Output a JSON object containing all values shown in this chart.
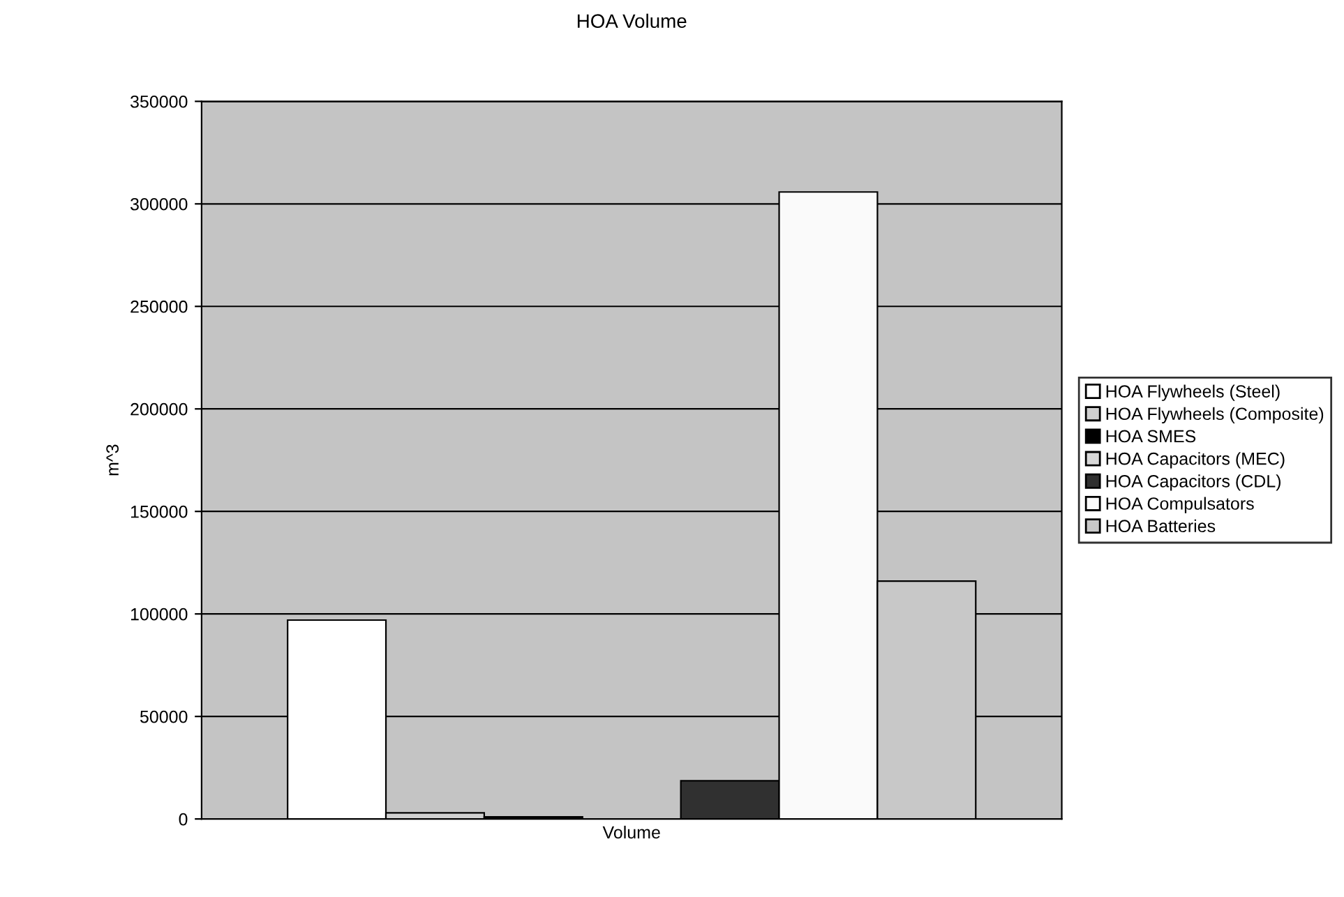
{
  "chart_data": {
    "type": "bar",
    "title": "HOA Volume",
    "ylabel": "m^3",
    "categories": [
      "Volume"
    ],
    "series": [
      {
        "name": "HOA Flywheels (Steel)",
        "color": "#ffffff",
        "values": [
          97000
        ]
      },
      {
        "name": "HOA Flywheels (Composite)",
        "color": "#d0d0d0",
        "values": [
          3000
        ]
      },
      {
        "name": "HOA SMES",
        "color": "#000000",
        "values": [
          1000
        ]
      },
      {
        "name": "HOA Capacitors (MEC)",
        "color": "#d8d8d8",
        "values": [
          null
        ]
      },
      {
        "name": "HOA Capacitors (CDL)",
        "color": "#303030",
        "values": [
          18600
        ]
      },
      {
        "name": "HOA Compulsators",
        "color": "#fafafa",
        "values": [
          305800
        ]
      },
      {
        "name": "HOA Batteries",
        "color": "#c8c8c8",
        "values": [
          116000
        ]
      }
    ],
    "ylim": [
      0,
      350000
    ],
    "yticks": [
      0,
      50000,
      100000,
      150000,
      200000,
      250000,
      300000,
      350000
    ],
    "grid": "y",
    "legend": "right"
  }
}
